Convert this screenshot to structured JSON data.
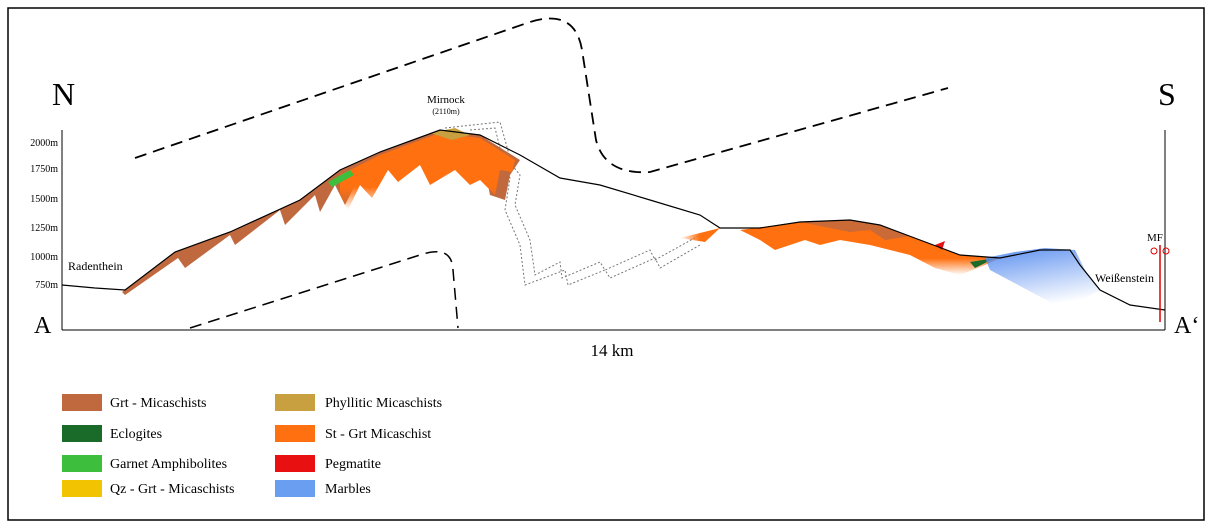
{
  "header": {
    "north": "N",
    "south": "S",
    "start": "A",
    "end": "A‘"
  },
  "peak": {
    "name": "Mirnock",
    "height": "(2110m)"
  },
  "axis": {
    "ticks": [
      "2000m",
      "1750m",
      "1500m",
      "1250m",
      "1000m",
      "750m"
    ]
  },
  "places": {
    "left": "Radenthein",
    "right": "Weißenstein",
    "fault": "MF"
  },
  "scale": "14 km",
  "legend": {
    "items": [
      "Grt - Micaschists",
      "Eclogites",
      "Garnet Amphibolites",
      "Qz - Grt - Micaschists",
      "Phyllitic Micaschists",
      "St - Grt Micaschist",
      "Pegmatite",
      "Marbles"
    ]
  }
}
